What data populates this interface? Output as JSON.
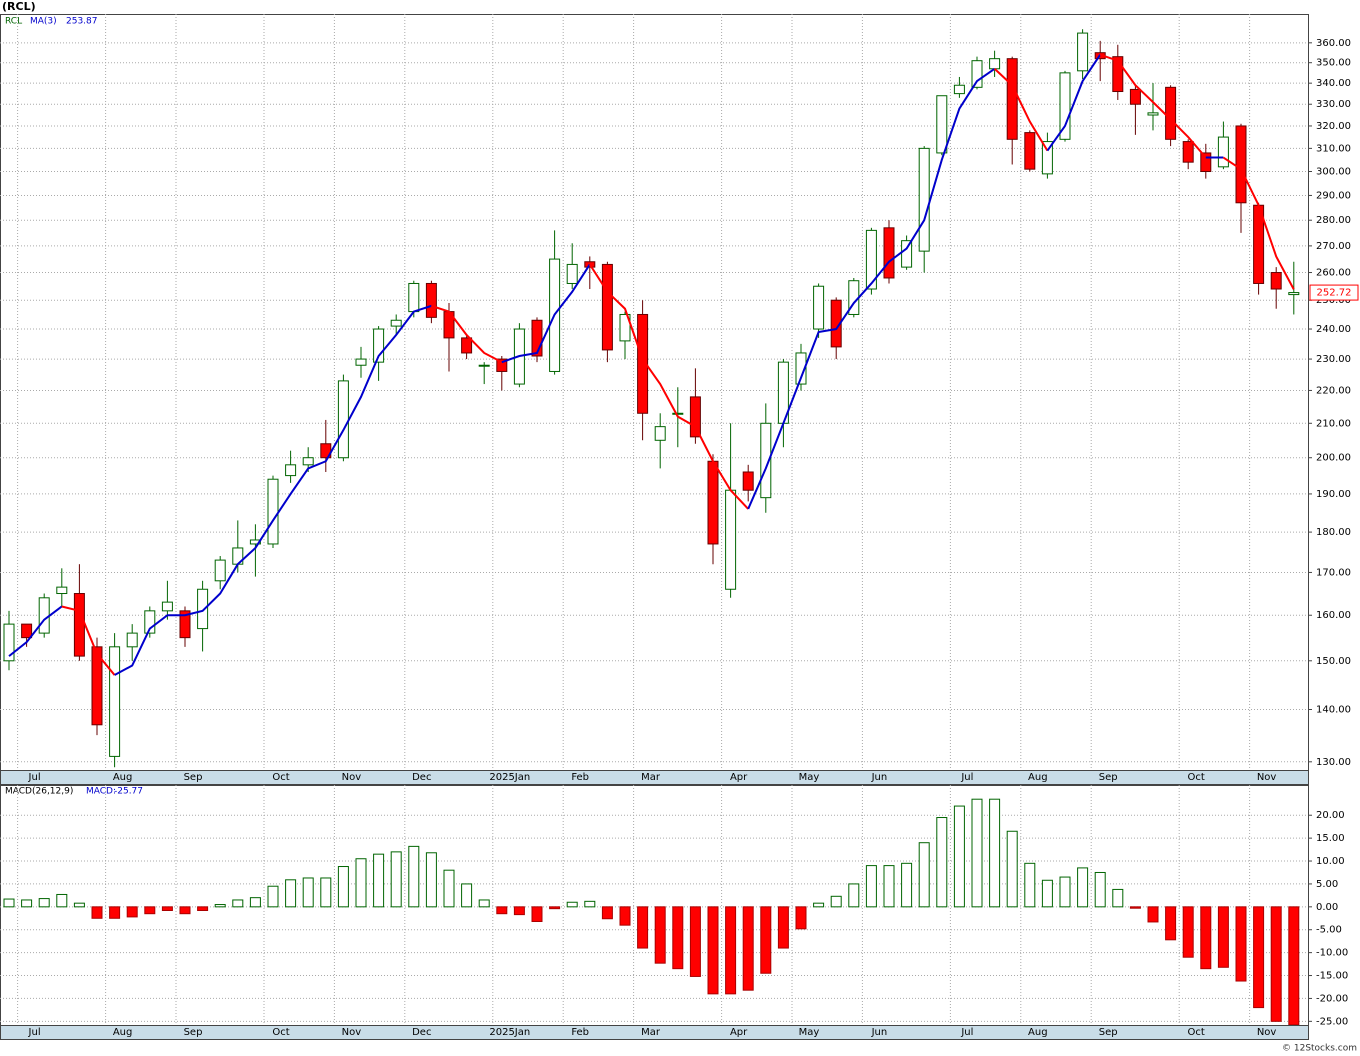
{
  "chart_data": [
    {
      "type": "candlestick",
      "title": "(RCL)",
      "ticker": "RCL",
      "log": true,
      "grid": true,
      "up_color": "#006400",
      "down_color": "#ff0000",
      "categories": [
        null,
        "Jul",
        null,
        null,
        null,
        null,
        "Aug",
        null,
        null,
        null,
        "Sep",
        null,
        null,
        null,
        null,
        "Oct",
        null,
        null,
        null,
        "Nov",
        null,
        null,
        null,
        "Dec",
        null,
        null,
        null,
        null,
        "2025Jan",
        null,
        null,
        null,
        "Feb",
        null,
        null,
        null,
        "Mar",
        null,
        null,
        null,
        null,
        "Apr",
        null,
        null,
        null,
        "May",
        null,
        null,
        null,
        "Jun",
        null,
        null,
        null,
        null,
        "Jul",
        null,
        null,
        null,
        "Aug",
        null,
        null,
        null,
        "Sep",
        null,
        null,
        null,
        null,
        "Oct",
        null,
        null,
        null,
        "Nov",
        null,
        null
      ],
      "open": [
        150,
        158,
        156,
        165,
        165,
        153,
        131,
        153,
        156,
        161,
        161,
        157,
        168,
        172,
        177,
        177,
        195,
        198,
        204,
        200,
        228,
        229,
        241,
        246,
        256,
        246,
        237,
        228,
        230,
        222,
        243,
        226,
        256,
        264,
        263,
        236,
        245,
        205,
        213,
        218,
        199,
        166,
        196,
        189,
        210,
        222,
        240,
        250,
        245,
        254,
        277,
        262,
        268,
        308,
        335,
        338,
        347,
        352,
        317,
        299,
        314,
        346,
        355,
        353,
        337,
        325,
        338,
        313,
        308,
        302,
        320,
        286,
        260,
        252
      ],
      "high": [
        161,
        158,
        165,
        171,
        172,
        155,
        156,
        158,
        162,
        168,
        162,
        168,
        174,
        183,
        182,
        195,
        202,
        203,
        211,
        225,
        234,
        241,
        245,
        257,
        257,
        249,
        238,
        229,
        231,
        242,
        244,
        276,
        271,
        266,
        264,
        246,
        250,
        213,
        221,
        227,
        201,
        210,
        198,
        216,
        230,
        235,
        256,
        251,
        258,
        277,
        280,
        274,
        311,
        334,
        343,
        353,
        356,
        353,
        318,
        317,
        346,
        367,
        361,
        359,
        339,
        340,
        339,
        314,
        312,
        322,
        321,
        287,
        262,
        264
      ],
      "low": [
        148,
        153,
        155,
        162,
        150,
        135,
        129,
        150,
        155,
        159,
        153,
        152,
        166,
        170,
        169,
        176,
        193,
        196,
        196,
        199,
        224,
        223,
        238,
        244,
        242,
        226,
        230,
        222,
        220,
        221,
        229,
        225,
        254,
        254,
        229,
        230,
        205,
        197,
        203,
        204,
        172,
        164,
        188,
        185,
        203,
        220,
        237,
        230,
        244,
        252,
        256,
        261,
        260,
        307,
        333,
        337,
        343,
        303,
        300,
        297,
        313,
        342,
        341,
        332,
        316,
        318,
        311,
        301,
        297,
        301,
        275,
        252,
        247,
        245
      ],
      "close": [
        158,
        155,
        164,
        166.5,
        151,
        137,
        153,
        156,
        161,
        163,
        155,
        166,
        173,
        176,
        178,
        194,
        198,
        200,
        200,
        223,
        230,
        240,
        243,
        256,
        244,
        237,
        232,
        228,
        226,
        240,
        231,
        265,
        263,
        262,
        233,
        245,
        213,
        209,
        213,
        206,
        177,
        191,
        191,
        210,
        229,
        232,
        255,
        234,
        257,
        276,
        258,
        272,
        310,
        334,
        339,
        351,
        352,
        314,
        301,
        313,
        345,
        365,
        352,
        336,
        330,
        326,
        314,
        304,
        300,
        315,
        287,
        256,
        254,
        252.72
      ],
      "ma": {
        "name": "MA(3)",
        "up_color": "#0000cc",
        "down_color": "#ff0000",
        "values": [
          151,
          154,
          159,
          162,
          161,
          151.5,
          147,
          149,
          157,
          160,
          160,
          161,
          165,
          172,
          176,
          183,
          190,
          197,
          199,
          208,
          218,
          231,
          238,
          246,
          248,
          246,
          238,
          232,
          229,
          231,
          232,
          245,
          253,
          263,
          253,
          247,
          230,
          222,
          212,
          209,
          199,
          191,
          186,
          197,
          210,
          224,
          239,
          240,
          249,
          256,
          264,
          269,
          280,
          305,
          328,
          341,
          347,
          339,
          322,
          309,
          320,
          341,
          354,
          351,
          339,
          331,
          323,
          315,
          306,
          306,
          301,
          286,
          266,
          253.87
        ]
      },
      "ylim": [
        128.5,
        375
      ],
      "yticks": [
        {
          "value": 130,
          "label": "130.00"
        },
        {
          "value": 140,
          "label": "140.00"
        },
        {
          "value": 150,
          "label": "150.00"
        },
        {
          "value": 160,
          "label": "160.00"
        },
        {
          "value": 170,
          "label": "170.00"
        },
        {
          "value": 180,
          "label": "180.00"
        },
        {
          "value": 190,
          "label": "190.00"
        },
        {
          "value": 200,
          "label": "200.00"
        },
        {
          "value": 210,
          "label": "210.00"
        },
        {
          "value": 220,
          "label": "220.00"
        },
        {
          "value": 230,
          "label": "230.00"
        },
        {
          "value": 240,
          "label": "240.00"
        },
        {
          "value": 250,
          "label": "250.00"
        },
        {
          "value": 260,
          "label": "260.00"
        },
        {
          "value": 270,
          "label": "270.00"
        },
        {
          "value": 280,
          "label": "280.00"
        },
        {
          "value": 290,
          "label": "290.00"
        },
        {
          "value": 300,
          "label": "300.00"
        },
        {
          "value": 310,
          "label": "310.00"
        },
        {
          "value": 320,
          "label": "320.00"
        },
        {
          "value": 330,
          "label": "330.00"
        },
        {
          "value": 340,
          "label": "340.00"
        },
        {
          "value": 350,
          "label": "350.00"
        },
        {
          "value": 360,
          "label": "360.00"
        }
      ]
    },
    {
      "type": "histogram_bar",
      "title": "MACD(26,12,9)",
      "legend_label": "MACD:",
      "grid": true,
      "up_color": "#006400",
      "down_color": "#ff0000",
      "categories": [
        null,
        "Jul",
        null,
        null,
        null,
        null,
        "Aug",
        null,
        null,
        null,
        "Sep",
        null,
        null,
        null,
        null,
        "Oct",
        null,
        null,
        null,
        "Nov",
        null,
        null,
        null,
        "Dec",
        null,
        null,
        null,
        null,
        "2025Jan",
        null,
        null,
        null,
        "Feb",
        null,
        null,
        null,
        "Mar",
        null,
        null,
        null,
        null,
        "Apr",
        null,
        null,
        null,
        "May",
        null,
        null,
        null,
        "Jun",
        null,
        null,
        null,
        null,
        "Jul",
        null,
        null,
        null,
        "Aug",
        null,
        null,
        null,
        "Sep",
        null,
        null,
        null,
        null,
        "Oct",
        null,
        null,
        null,
        "Nov",
        null,
        null
      ],
      "values": [
        1.7,
        1.5,
        1.8,
        2.7,
        0.8,
        -2.5,
        -2.5,
        -2.2,
        -1.5,
        -0.8,
        -1.5,
        -0.8,
        0.5,
        1.5,
        2,
        4.5,
        5.9,
        6.3,
        6.3,
        8.8,
        10.5,
        11.5,
        12,
        13.2,
        11.8,
        8,
        5,
        1.5,
        -1.5,
        -1.7,
        -3.2,
        -0.4,
        1,
        1.2,
        -2.6,
        -4,
        -9,
        -12.3,
        -13.5,
        -15.2,
        -19,
        -19,
        -18.2,
        -14.5,
        -9,
        -4.8,
        0.8,
        2.3,
        5,
        9,
        9,
        9.5,
        14,
        19.5,
        22,
        23.5,
        23.5,
        16.5,
        9.5,
        5.8,
        6.5,
        8.5,
        7.5,
        3.8,
        -0.3,
        -3.3,
        -7.2,
        -11,
        -13.5,
        -13.2,
        -16.2,
        -22,
        -25,
        -25.77
      ],
      "ylim": [
        -25.8,
        26.6
      ],
      "yticks": [
        {
          "value": -25,
          "label": "-25.00"
        },
        {
          "value": -20,
          "label": "-20.00"
        },
        {
          "value": -15,
          "label": "-15.00"
        },
        {
          "value": -10,
          "label": "-10.00"
        },
        {
          "value": -5,
          "label": "-5.00"
        },
        {
          "value": 0,
          "label": "0.00"
        },
        {
          "value": 5,
          "label": "5.00"
        },
        {
          "value": 10,
          "label": "10.00"
        },
        {
          "value": 15,
          "label": "15.00"
        },
        {
          "value": 20,
          "label": "20.00"
        }
      ]
    }
  ],
  "footer": "© 12Stocks.com"
}
